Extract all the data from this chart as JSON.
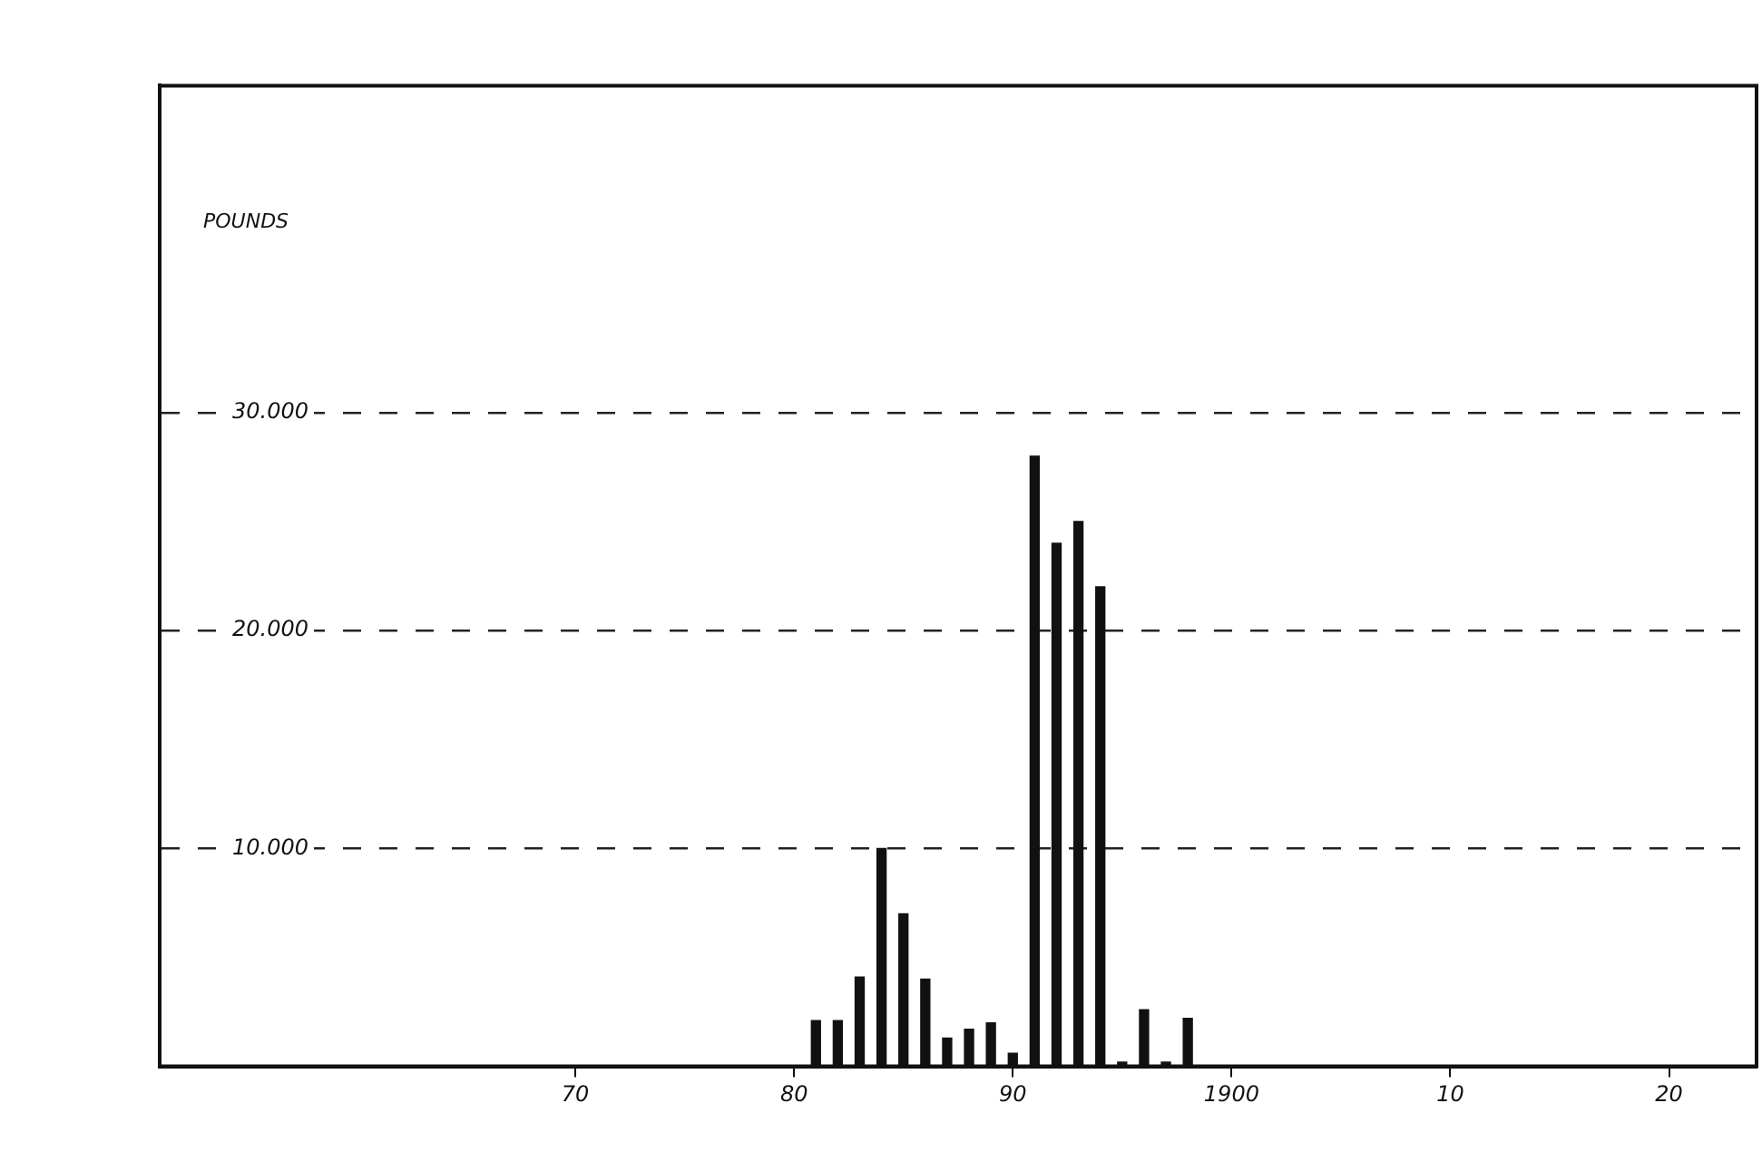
{
  "chart_data": {
    "type": "bar",
    "ylabel": "POUNDS",
    "x": [
      1881,
      1882,
      1883,
      1884,
      1885,
      1886,
      1887,
      1888,
      1889,
      1890,
      1891,
      1892,
      1893,
      1894,
      1895,
      1896,
      1897,
      1898
    ],
    "series": [
      {
        "color": "#111111",
        "values": [
          2100,
          2100,
          4100,
          10000,
          7000,
          4000,
          1300,
          1700,
          2000,
          600,
          28000,
          24000,
          25000,
          22000,
          200,
          2600,
          200,
          2200
        ]
      }
    ],
    "xlim": [
      1851,
      1924
    ],
    "xticks": [
      {
        "value": 1870,
        "label": "70"
      },
      {
        "value": 1880,
        "label": "80"
      },
      {
        "value": 1890,
        "label": "90"
      },
      {
        "value": 1900,
        "label": "1900"
      },
      {
        "value": 1910,
        "label": "10"
      },
      {
        "value": 1920,
        "label": "20"
      }
    ],
    "ylim": [
      0,
      45000
    ],
    "yticks": [
      {
        "value": 10000,
        "label": "10.000"
      },
      {
        "value": 20000,
        "label": "20.000"
      },
      {
        "value": 30000,
        "label": "30.000"
      }
    ],
    "grid": "y",
    "legend": false
  }
}
